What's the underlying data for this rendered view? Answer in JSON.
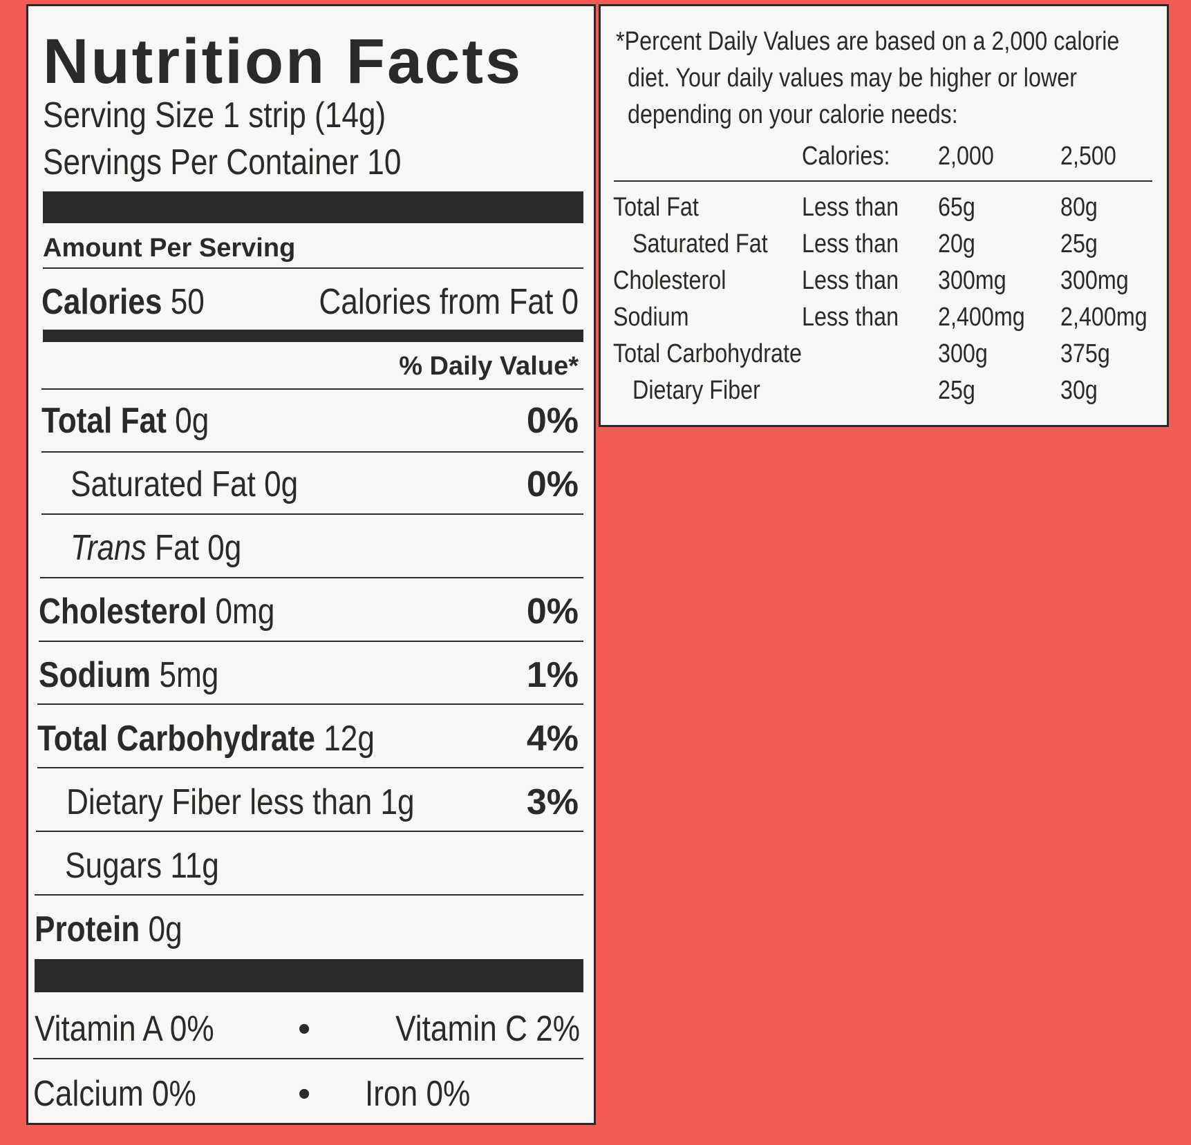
{
  "label": {
    "title": "Nutrition Facts",
    "serving_size": "Serving Size 1 strip (14g)",
    "servings_per_container": "Servings Per Container 10",
    "amount_per_serving": "Amount Per Serving",
    "calories_label": "Calories",
    "calories_value": "50",
    "calories_from_fat": "Calories from Fat 0",
    "daily_value_header": "% Daily Value*",
    "nutrients": [
      {
        "name": "Total Fat",
        "amount": "0g",
        "dv": "0%"
      },
      {
        "name": "Saturated Fat",
        "amount": "0g",
        "dv": "0%"
      },
      {
        "name_italic": "Trans",
        "name": "Fat",
        "amount": "0g",
        "dv": ""
      },
      {
        "name": "Cholesterol",
        "amount": "0mg",
        "dv": "0%"
      },
      {
        "name": "Sodium",
        "amount": "5mg",
        "dv": "1%"
      },
      {
        "name": "Total Carbohydrate",
        "amount": "12g",
        "dv": "4%"
      },
      {
        "name": "Dietary Fiber",
        "amount": "less than 1g",
        "dv": "3%"
      },
      {
        "name": "Sugars",
        "amount": "11g",
        "dv": ""
      },
      {
        "name": "Protein",
        "amount": "0g",
        "dv": ""
      }
    ],
    "vitamins": [
      {
        "left": "Vitamin A 0%",
        "right": "Vitamin C 2%"
      },
      {
        "left": "Calcium 0%",
        "right": "Iron 0%"
      }
    ],
    "bullet": "•"
  },
  "footnote": {
    "lines": [
      "*Percent Daily Values are based on a 2,000 calorie",
      "diet. Your daily values may be higher or lower",
      "depending on your calorie needs:"
    ],
    "header": {
      "label": "Calories:",
      "col1": "2,000",
      "col2": "2,500"
    },
    "rows": [
      {
        "name": "Total Fat",
        "qualifier": "Less than",
        "col1": "65g",
        "col2": "80g"
      },
      {
        "name": "Saturated Fat",
        "qualifier": "Less than",
        "col1": "20g",
        "col2": "25g"
      },
      {
        "name": "Cholesterol",
        "qualifier": "Less than",
        "col1": "300mg",
        "col2": "300mg"
      },
      {
        "name": "Sodium",
        "qualifier": "Less than",
        "col1": "2,400mg",
        "col2": "2,400mg"
      },
      {
        "name": "Total Carbohydrate",
        "qualifier": "",
        "col1": "300g",
        "col2": "375g"
      },
      {
        "name": "Dietary Fiber",
        "qualifier": "",
        "col1": "25g",
        "col2": "30g"
      }
    ]
  },
  "colors": {
    "background": "#f25c55",
    "panel": "#f7f7f5",
    "ink": "#2b2a28"
  }
}
